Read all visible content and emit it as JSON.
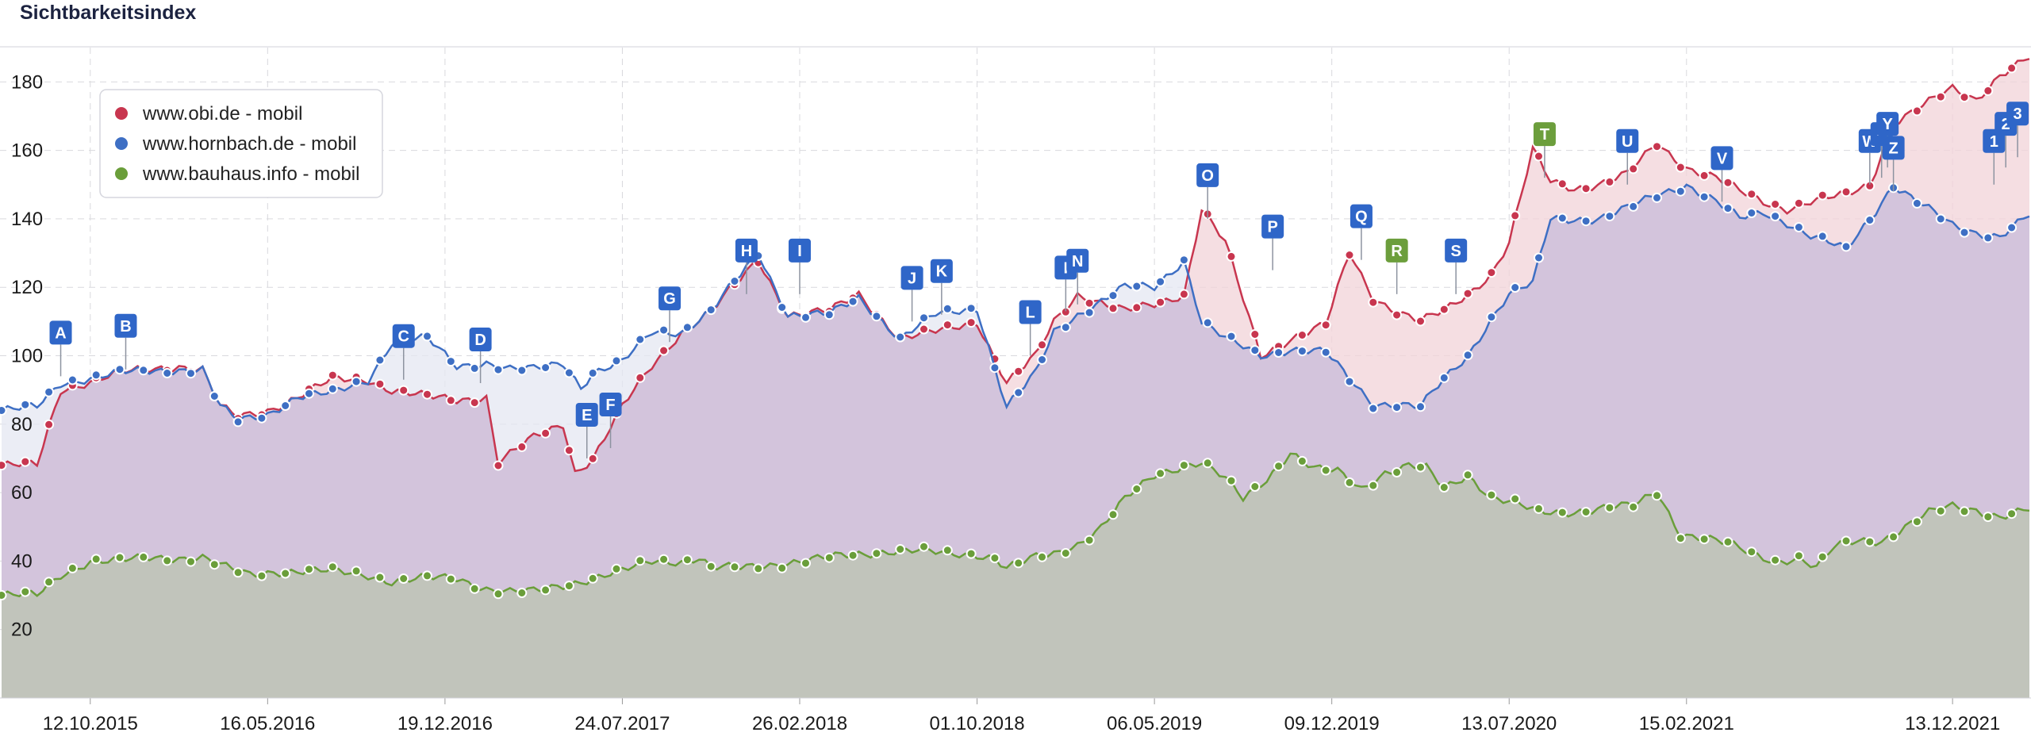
{
  "header": {
    "title": "Sichtbarkeitsindex"
  },
  "chart_data": {
    "type": "area",
    "title": "Sichtbarkeitsindex",
    "xlabel": "",
    "ylabel": "",
    "ylim": [
      0,
      190
    ],
    "yticks": [
      20,
      40,
      60,
      80,
      100,
      120,
      140,
      160,
      180
    ],
    "grid": true,
    "legend_position": "top-left",
    "x_tick_labels": [
      "12.10.2015",
      "16.05.2016",
      "19.12.2016",
      "24.07.2017",
      "26.02.2018",
      "01.10.2018",
      "06.05.2019",
      "09.12.2019",
      "13.07.2020",
      "15.02.2021",
      "13.12.2021"
    ],
    "x_tick_weeks": [
      15,
      45,
      75,
      105,
      135,
      165,
      195,
      225,
      255,
      285,
      330
    ],
    "n_weeks": 343,
    "series": [
      {
        "name": "www.obi.de - mobil",
        "color": "#c8364f",
        "fill": "#f1d3d8",
        "points": [
          [
            0,
            68
          ],
          [
            6,
            68
          ],
          [
            10,
            90
          ],
          [
            20,
            95
          ],
          [
            30,
            97
          ],
          [
            34,
            96
          ],
          [
            37,
            85
          ],
          [
            40,
            82
          ],
          [
            45,
            84
          ],
          [
            50,
            88
          ],
          [
            56,
            93
          ],
          [
            62,
            93
          ],
          [
            66,
            90
          ],
          [
            72,
            88
          ],
          [
            77,
            87
          ],
          [
            82,
            88
          ],
          [
            84,
            69
          ],
          [
            90,
            76
          ],
          [
            95,
            80
          ],
          [
            97,
            66
          ],
          [
            100,
            70
          ],
          [
            105,
            85
          ],
          [
            110,
            97
          ],
          [
            115,
            107
          ],
          [
            120,
            113
          ],
          [
            128,
            128
          ],
          [
            133,
            112
          ],
          [
            140,
            113
          ],
          [
            145,
            118
          ],
          [
            152,
            105
          ],
          [
            158,
            107
          ],
          [
            165,
            110
          ],
          [
            170,
            92
          ],
          [
            175,
            100
          ],
          [
            178,
            110
          ],
          [
            182,
            118
          ],
          [
            190,
            113
          ],
          [
            195,
            115
          ],
          [
            200,
            118
          ],
          [
            203,
            143
          ],
          [
            207,
            133
          ],
          [
            213,
            100
          ],
          [
            218,
            105
          ],
          [
            224,
            109
          ],
          [
            228,
            130
          ],
          [
            232,
            117
          ],
          [
            236,
            113
          ],
          [
            240,
            110
          ],
          [
            244,
            113
          ],
          [
            248,
            118
          ],
          [
            252,
            124
          ],
          [
            255,
            133
          ],
          [
            259,
            160
          ],
          [
            262,
            151
          ],
          [
            266,
            149
          ],
          [
            270,
            150
          ],
          [
            275,
            153
          ],
          [
            280,
            162
          ],
          [
            285,
            155
          ],
          [
            290,
            152
          ],
          [
            294,
            148
          ],
          [
            298,
            145
          ],
          [
            302,
            143
          ],
          [
            306,
            145
          ],
          [
            312,
            147
          ],
          [
            316,
            150
          ],
          [
            320,
            168
          ],
          [
            324,
            172
          ],
          [
            330,
            178
          ],
          [
            334,
            175
          ],
          [
            338,
            182
          ],
          [
            343,
            187
          ]
        ]
      },
      {
        "name": "www.hornbach.de - mobil",
        "color": "#3e6fc4",
        "fill": "#e4e7f1",
        "points": [
          [
            0,
            84
          ],
          [
            6,
            85
          ],
          [
            10,
            92
          ],
          [
            20,
            95
          ],
          [
            30,
            96
          ],
          [
            34,
            96
          ],
          [
            37,
            85
          ],
          [
            40,
            81
          ],
          [
            45,
            83
          ],
          [
            50,
            88
          ],
          [
            56,
            89
          ],
          [
            62,
            93
          ],
          [
            66,
            104
          ],
          [
            72,
            105
          ],
          [
            77,
            97
          ],
          [
            82,
            98
          ],
          [
            86,
            96
          ],
          [
            90,
            96
          ],
          [
            95,
            98
          ],
          [
            98,
            91
          ],
          [
            100,
            95
          ],
          [
            105,
            98
          ],
          [
            110,
            107
          ],
          [
            115,
            107
          ],
          [
            120,
            113
          ],
          [
            128,
            130
          ],
          [
            133,
            112
          ],
          [
            140,
            112
          ],
          [
            145,
            117
          ],
          [
            152,
            105
          ],
          [
            158,
            112
          ],
          [
            165,
            114
          ],
          [
            170,
            85
          ],
          [
            175,
            95
          ],
          [
            178,
            107
          ],
          [
            182,
            112
          ],
          [
            190,
            120
          ],
          [
            195,
            120
          ],
          [
            200,
            128
          ],
          [
            203,
            110
          ],
          [
            207,
            105
          ],
          [
            213,
            100
          ],
          [
            218,
            102
          ],
          [
            224,
            101
          ],
          [
            228,
            93
          ],
          [
            232,
            86
          ],
          [
            236,
            86
          ],
          [
            240,
            85
          ],
          [
            244,
            93
          ],
          [
            248,
            100
          ],
          [
            252,
            111
          ],
          [
            255,
            118
          ],
          [
            259,
            121
          ],
          [
            262,
            140
          ],
          [
            266,
            140
          ],
          [
            270,
            140
          ],
          [
            275,
            143
          ],
          [
            280,
            147
          ],
          [
            285,
            150
          ],
          [
            290,
            145
          ],
          [
            294,
            140
          ],
          [
            298,
            142
          ],
          [
            302,
            139
          ],
          [
            306,
            135
          ],
          [
            312,
            131
          ],
          [
            316,
            140
          ],
          [
            320,
            150
          ],
          [
            324,
            145
          ],
          [
            330,
            138
          ],
          [
            334,
            136
          ],
          [
            338,
            135
          ],
          [
            343,
            141
          ]
        ]
      },
      {
        "name": "www.bauhaus.info - mobil",
        "color": "#6a9e3a",
        "fill": "#c2c7bf",
        "points": [
          [
            0,
            30
          ],
          [
            6,
            30
          ],
          [
            10,
            36
          ],
          [
            15,
            40
          ],
          [
            20,
            40
          ],
          [
            25,
            41
          ],
          [
            30,
            41
          ],
          [
            34,
            41
          ],
          [
            38,
            38
          ],
          [
            42,
            36
          ],
          [
            46,
            37
          ],
          [
            50,
            37
          ],
          [
            56,
            37
          ],
          [
            62,
            36
          ],
          [
            66,
            34
          ],
          [
            72,
            35
          ],
          [
            77,
            35
          ],
          [
            82,
            32
          ],
          [
            86,
            31
          ],
          [
            90,
            31
          ],
          [
            95,
            33
          ],
          [
            100,
            35
          ],
          [
            105,
            37
          ],
          [
            110,
            40
          ],
          [
            115,
            40
          ],
          [
            118,
            41
          ],
          [
            120,
            38
          ],
          [
            125,
            38
          ],
          [
            130,
            39
          ],
          [
            135,
            40
          ],
          [
            140,
            41
          ],
          [
            145,
            42
          ],
          [
            150,
            43
          ],
          [
            155,
            43
          ],
          [
            160,
            42
          ],
          [
            165,
            42
          ],
          [
            168,
            41
          ],
          [
            170,
            38
          ],
          [
            175,
            41
          ],
          [
            178,
            42
          ],
          [
            182,
            45
          ],
          [
            186,
            50
          ],
          [
            190,
            58
          ],
          [
            195,
            65
          ],
          [
            200,
            68
          ],
          [
            203,
            69
          ],
          [
            207,
            64
          ],
          [
            210,
            58
          ],
          [
            214,
            64
          ],
          [
            218,
            72
          ],
          [
            222,
            67
          ],
          [
            226,
            66
          ],
          [
            230,
            61
          ],
          [
            234,
            66
          ],
          [
            238,
            68
          ],
          [
            241,
            67
          ],
          [
            244,
            61
          ],
          [
            248,
            65
          ],
          [
            252,
            59
          ],
          [
            256,
            57
          ],
          [
            260,
            54
          ],
          [
            264,
            54
          ],
          [
            268,
            55
          ],
          [
            272,
            56
          ],
          [
            276,
            56
          ],
          [
            280,
            60
          ],
          [
            284,
            48
          ],
          [
            288,
            47
          ],
          [
            292,
            45
          ],
          [
            296,
            42
          ],
          [
            300,
            40
          ],
          [
            304,
            41
          ],
          [
            307,
            38
          ],
          [
            310,
            44
          ],
          [
            314,
            46
          ],
          [
            318,
            46
          ],
          [
            322,
            50
          ],
          [
            326,
            54
          ],
          [
            330,
            56
          ],
          [
            334,
            55
          ],
          [
            338,
            53
          ],
          [
            343,
            55
          ]
        ]
      }
    ],
    "flags": [
      {
        "label": "A",
        "week": 10,
        "value": 94,
        "type": "hornbach"
      },
      {
        "label": "B",
        "week": 21,
        "value": 96,
        "type": "hornbach"
      },
      {
        "label": "C",
        "week": 68,
        "value": 93,
        "type": "hornbach"
      },
      {
        "label": "D",
        "week": 81,
        "value": 92,
        "type": "hornbach"
      },
      {
        "label": "E",
        "week": 99,
        "value": 70,
        "type": "hornbach"
      },
      {
        "label": "F",
        "week": 103,
        "value": 73,
        "type": "hornbach"
      },
      {
        "label": "G",
        "week": 113,
        "value": 104,
        "type": "hornbach"
      },
      {
        "label": "H",
        "week": 126,
        "value": 118,
        "type": "hornbach"
      },
      {
        "label": "I",
        "week": 135,
        "value": 118,
        "type": "hornbach"
      },
      {
        "label": "J",
        "week": 154,
        "value": 110,
        "type": "hornbach"
      },
      {
        "label": "K",
        "week": 159,
        "value": 112,
        "type": "hornbach"
      },
      {
        "label": "L",
        "week": 174,
        "value": 100,
        "type": "hornbach"
      },
      {
        "label": "I",
        "week": 180,
        "value": 113,
        "type": "hornbach"
      },
      {
        "label": "N",
        "week": 182,
        "value": 115,
        "type": "hornbach"
      },
      {
        "label": "O",
        "week": 204,
        "value": 140,
        "type": "hornbach"
      },
      {
        "label": "P",
        "week": 215,
        "value": 125,
        "type": "hornbach"
      },
      {
        "label": "Q",
        "week": 230,
        "value": 128,
        "type": "hornbach"
      },
      {
        "label": "R",
        "week": 236,
        "value": 118,
        "type": "bauhaus"
      },
      {
        "label": "S",
        "week": 246,
        "value": 118,
        "type": "hornbach"
      },
      {
        "label": "T",
        "week": 261,
        "value": 152,
        "type": "bauhaus"
      },
      {
        "label": "U",
        "week": 275,
        "value": 150,
        "type": "hornbach"
      },
      {
        "label": "V",
        "week": 291,
        "value": 145,
        "type": "hornbach"
      },
      {
        "label": "W",
        "week": 316,
        "value": 150,
        "type": "hornbach"
      },
      {
        "label": "^",
        "week": 318,
        "value": 152,
        "type": "hornbach"
      },
      {
        "label": "Y",
        "week": 319,
        "value": 155,
        "type": "hornbach"
      },
      {
        "label": "Z",
        "week": 320,
        "value": 148,
        "type": "hornbach"
      },
      {
        "label": "1",
        "week": 337,
        "value": 150,
        "type": "hornbach"
      },
      {
        "label": "2",
        "week": 339,
        "value": 155,
        "type": "hornbach"
      },
      {
        "label": "3",
        "week": 341,
        "value": 158,
        "type": "hornbach"
      }
    ]
  },
  "colors": {
    "flag_blue": "#2f66c8",
    "flag_green": "#6c9e3c",
    "grid": "#d9d9dd"
  }
}
